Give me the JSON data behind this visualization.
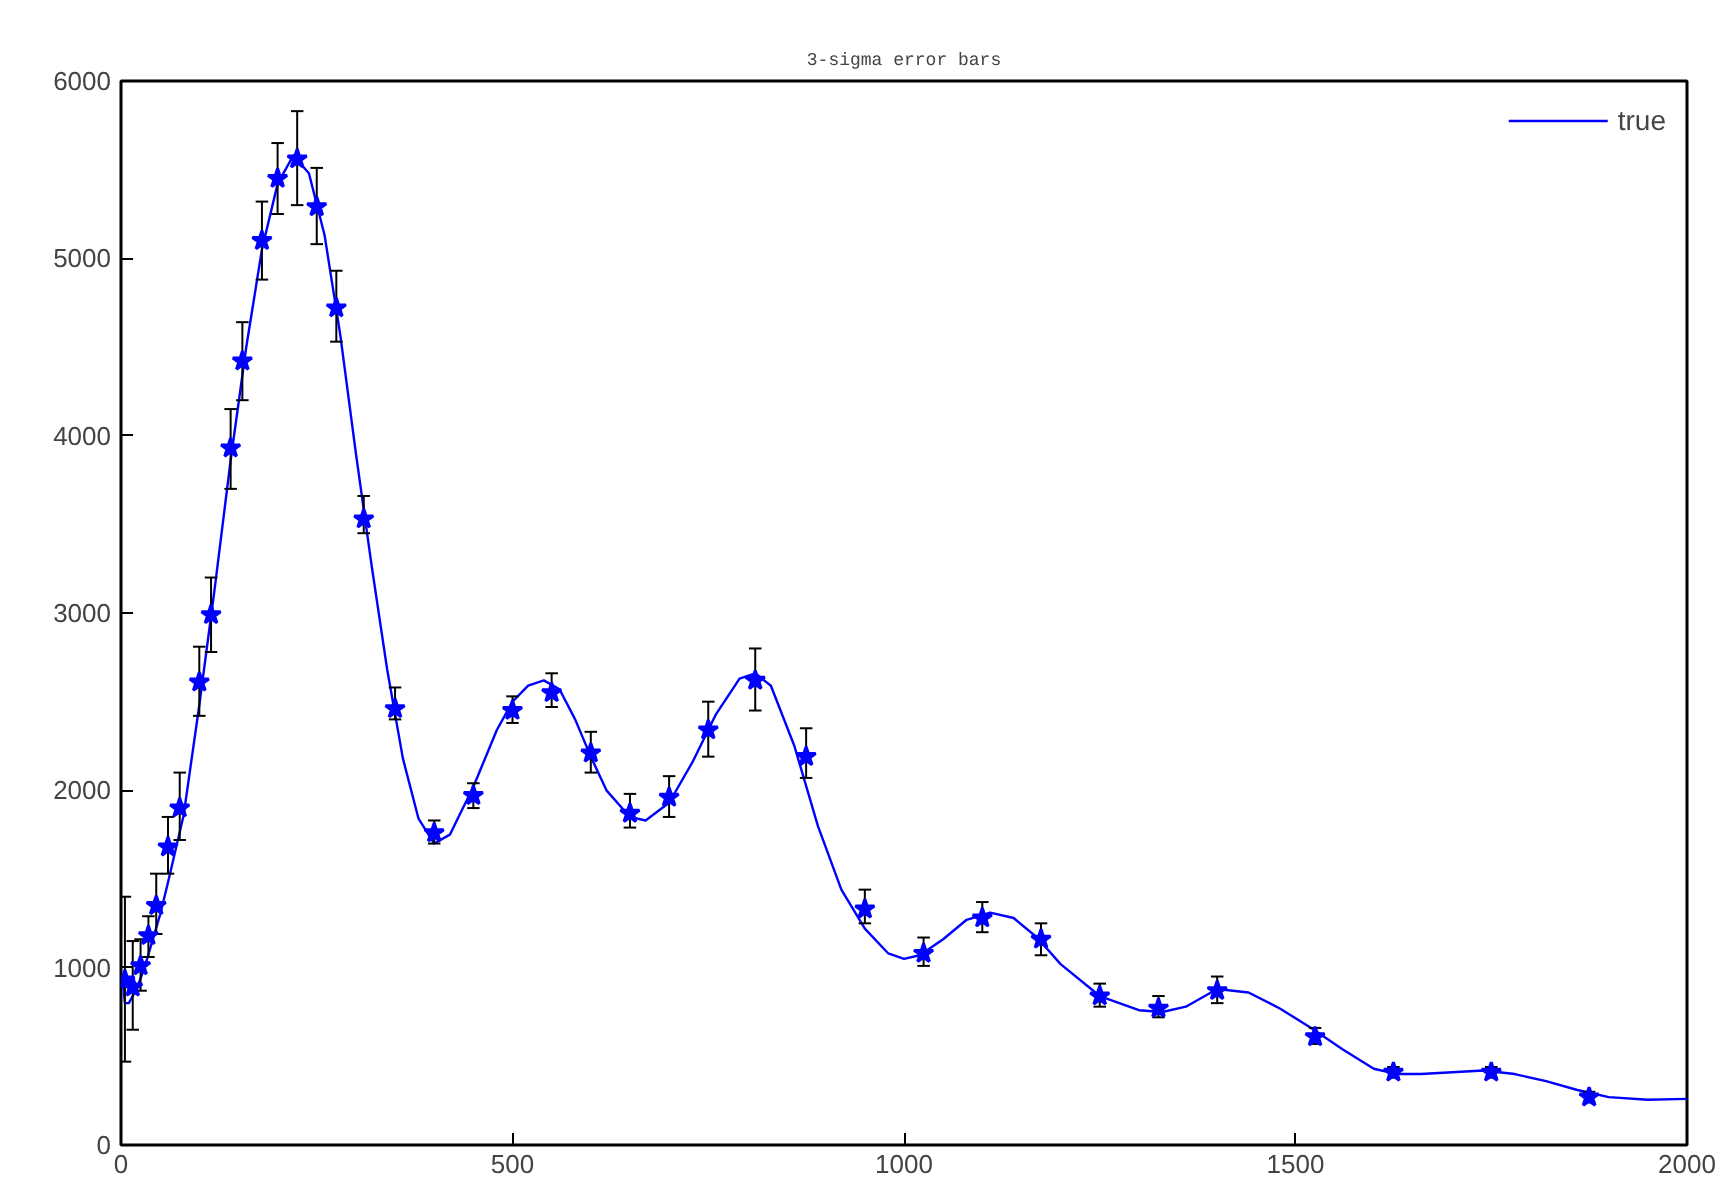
{
  "chart_data": {
    "type": "scatter",
    "title": "3-sigma error bars",
    "xlim": [
      0,
      2000
    ],
    "xticks": [
      0,
      500,
      1000,
      1500,
      2000
    ],
    "ylim": [
      0,
      6000
    ],
    "yticks": [
      0,
      1000,
      2000,
      3000,
      4000,
      5000,
      6000
    ],
    "grid": false,
    "legend": "top right",
    "series": [
      {
        "name": "true",
        "type": "line",
        "color": "#0000ff",
        "marker": "none",
        "line_style": "solid",
        "x": [
          2,
          5,
          10,
          20,
          30,
          40,
          50,
          60,
          80,
          100,
          120,
          140,
          160,
          180,
          200,
          220,
          240,
          260,
          280,
          300,
          320,
          340,
          360,
          380,
          400,
          420,
          450,
          480,
          500,
          520,
          540,
          560,
          580,
          600,
          620,
          650,
          670,
          700,
          730,
          760,
          790,
          810,
          830,
          860,
          890,
          920,
          950,
          980,
          1000,
          1020,
          1050,
          1080,
          1110,
          1140,
          1170,
          1200,
          1250,
          1300,
          1330,
          1360,
          1400,
          1440,
          1480,
          1520,
          1560,
          1600,
          1630,
          1660,
          1700,
          1740,
          1780,
          1820,
          1860,
          1900,
          1950,
          2000
        ],
        "values": [
          950,
          800,
          800,
          880,
          1000,
          1150,
          1300,
          1480,
          1860,
          2480,
          3150,
          3860,
          4500,
          5050,
          5420,
          5580,
          5480,
          5130,
          4570,
          3900,
          3270,
          2680,
          2180,
          1840,
          1700,
          1750,
          2020,
          2340,
          2500,
          2590,
          2620,
          2570,
          2400,
          2190,
          2000,
          1850,
          1830,
          1930,
          2160,
          2430,
          2630,
          2660,
          2590,
          2250,
          1800,
          1440,
          1220,
          1080,
          1050,
          1070,
          1160,
          1270,
          1310,
          1280,
          1170,
          1020,
          840,
          760,
          750,
          780,
          880,
          860,
          770,
          660,
          540,
          430,
          400,
          400,
          410,
          420,
          400,
          360,
          310,
          270,
          255,
          260
        ]
      },
      {
        "color": "#0000ff",
        "marker": "star",
        "x": [
          5,
          15,
          25,
          35,
          45,
          60,
          75,
          100,
          115,
          140,
          155,
          180,
          200,
          225,
          250,
          275,
          310,
          350,
          400,
          450,
          500,
          550,
          600,
          650,
          700,
          750,
          810,
          875,
          950,
          1025,
          1100,
          1175,
          1250,
          1325,
          1400,
          1525,
          1625,
          1750,
          1875
        ],
        "values": [
          930,
          890,
          1010,
          1180,
          1350,
          1680,
          1900,
          2610,
          2990,
          3930,
          4420,
          5100,
          5450,
          5560,
          5290,
          4720,
          3530,
          2460,
          1760,
          1970,
          2450,
          2550,
          2210,
          1870,
          1960,
          2340,
          2620,
          2190,
          1330,
          1080,
          1280,
          1160,
          840,
          770,
          870,
          610,
          410,
          410,
          270
        ],
        "errors": [
          [
            470,
            1400
          ],
          [
            650,
            1150
          ],
          [
            870,
            1160
          ],
          [
            1060,
            1290
          ],
          [
            1190,
            1530
          ],
          [
            1530,
            1850
          ],
          [
            1720,
            2100
          ],
          [
            2420,
            2810
          ],
          [
            2780,
            3200
          ],
          [
            3700,
            4150
          ],
          [
            4200,
            4640
          ],
          [
            4880,
            5320
          ],
          [
            5250,
            5650
          ],
          [
            5300,
            5830
          ],
          [
            5080,
            5510
          ],
          [
            4530,
            4930
          ],
          [
            3450,
            3660
          ],
          [
            2400,
            2580
          ],
          [
            1700,
            1830
          ],
          [
            1900,
            2040
          ],
          [
            2380,
            2530
          ],
          [
            2470,
            2660
          ],
          [
            2100,
            2330
          ],
          [
            1790,
            1980
          ],
          [
            1850,
            2080
          ],
          [
            2190,
            2500
          ],
          [
            2450,
            2800
          ],
          [
            2070,
            2350
          ],
          [
            1250,
            1440
          ],
          [
            1010,
            1170
          ],
          [
            1200,
            1370
          ],
          [
            1070,
            1250
          ],
          [
            780,
            910
          ],
          [
            720,
            840
          ],
          [
            800,
            950
          ],
          [
            570,
            660
          ],
          [
            380,
            440
          ],
          [
            380,
            440
          ],
          [
            240,
            300
          ]
        ]
      }
    ]
  }
}
